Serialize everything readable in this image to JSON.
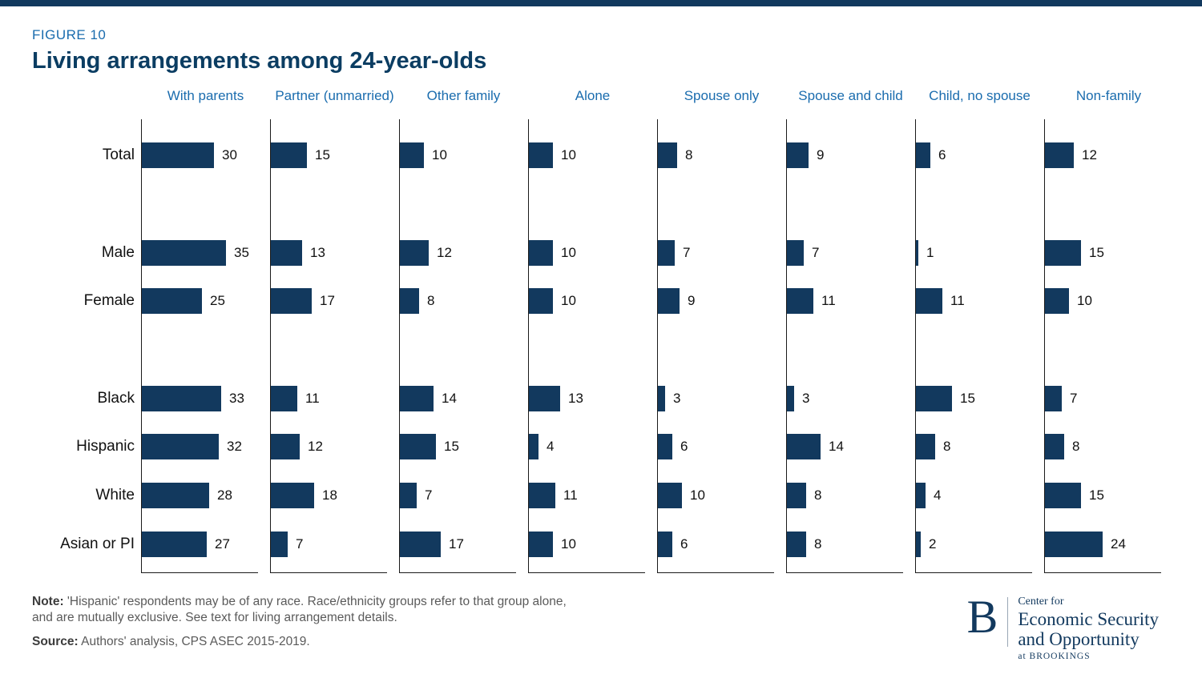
{
  "header": {
    "figure_label": "FIGURE 10",
    "title": "Living arrangements among 24-year-olds"
  },
  "chart_data": {
    "type": "bar",
    "title": "Living arrangements among 24-year-olds",
    "orientation": "horizontal",
    "layout": "small-multiples",
    "categories": [
      "Total",
      "Male",
      "Female",
      "Black",
      "Hispanic",
      "White",
      "Asian or PI"
    ],
    "series": [
      {
        "name": "With parents",
        "values": [
          30,
          35,
          25,
          33,
          32,
          28,
          27
        ]
      },
      {
        "name": "Partner (unmarried)",
        "values": [
          15,
          13,
          17,
          11,
          12,
          18,
          7
        ]
      },
      {
        "name": "Other family",
        "values": [
          10,
          12,
          8,
          14,
          15,
          7,
          17
        ]
      },
      {
        "name": "Alone",
        "values": [
          10,
          10,
          10,
          13,
          4,
          11,
          10
        ]
      },
      {
        "name": "Spouse only",
        "values": [
          8,
          7,
          9,
          3,
          6,
          10,
          6
        ]
      },
      {
        "name": "Spouse and child",
        "values": [
          9,
          7,
          11,
          3,
          14,
          8,
          8
        ]
      },
      {
        "name": "Child, no spouse",
        "values": [
          6,
          1,
          11,
          15,
          8,
          4,
          2
        ]
      },
      {
        "name": "Non-family",
        "values": [
          12,
          15,
          10,
          7,
          8,
          15,
          24
        ]
      }
    ],
    "xlim": [
      0,
      40
    ],
    "value_labels": true,
    "grid": false,
    "legend": false
  },
  "notes": {
    "note_label": "Note:",
    "note_text": "'Hispanic' respondents may be of any race. Race/ethnicity groups refer to that group alone, and are mutually exclusive. See text for living arrangement details.",
    "source_label": "Source:",
    "source_text": "Authors' analysis, CPS ASEC 2015-2019."
  },
  "logo": {
    "letter": "B",
    "line1": "Center for",
    "line2": "Economic Security",
    "line3": "and Opportunity",
    "line4": "at BROOKINGS"
  },
  "colors": {
    "bar_navy": "#12395e",
    "header_blue": "#1a6cae",
    "title_navy": "#0b3d62",
    "topbar_navy": "#12395e"
  }
}
